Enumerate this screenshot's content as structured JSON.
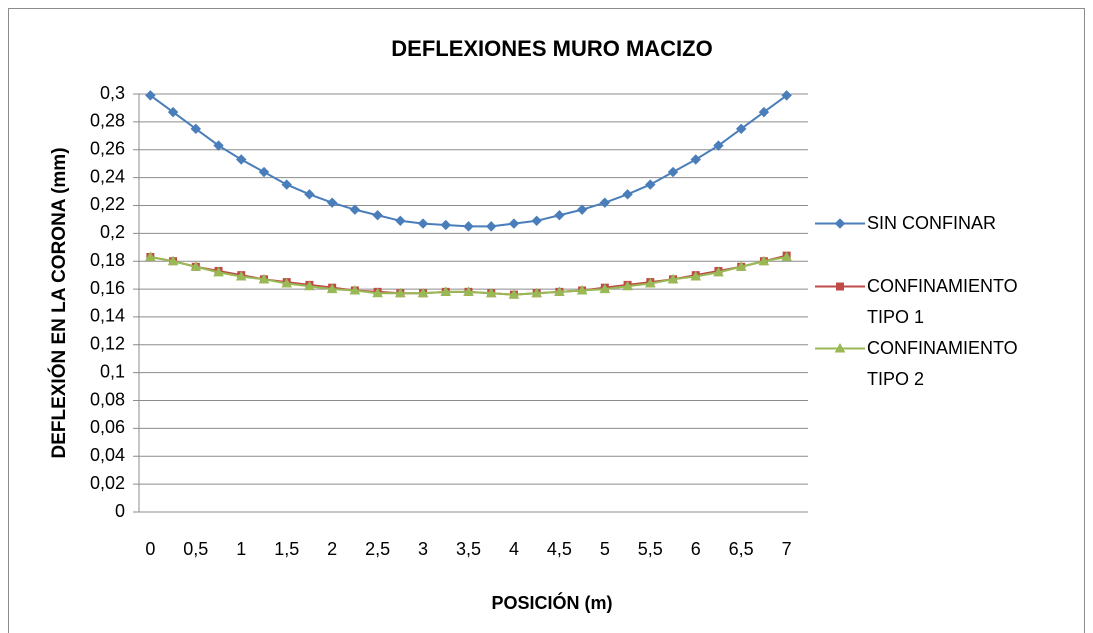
{
  "chart_data": {
    "type": "line",
    "title": "DEFLEXIONES MURO MACIZO",
    "x_label": "POSICIÓN (m)",
    "y_label": "DEFLEXIÓN EN LA CORONA (mm)",
    "categories": [
      "0",
      null,
      "0,5",
      null,
      "1",
      null,
      "1,5",
      null,
      "2",
      null,
      "2,5",
      null,
      "3",
      null,
      "3,5",
      null,
      "4",
      null,
      "4,5",
      null,
      "5",
      null,
      "5,5",
      null,
      "6",
      null,
      "6,5",
      null,
      "7"
    ],
    "series": [
      {
        "name": "SIN CONFINAR",
        "color": "#4a7ebb",
        "marker": "diamond",
        "values": [
          0.299,
          0.287,
          0.275,
          0.263,
          0.253,
          0.244,
          0.235,
          0.228,
          0.222,
          0.217,
          0.213,
          0.209,
          0.207,
          0.206,
          0.205,
          0.205,
          0.207,
          0.209,
          0.213,
          0.217,
          0.222,
          0.228,
          0.235,
          0.244,
          0.253,
          0.263,
          0.275,
          0.287,
          0.299
        ]
      },
      {
        "name": "CONFINAMIENTO TIPO 1",
        "color": "#be4b48",
        "marker": "square",
        "values": [
          0.183,
          0.18,
          0.176,
          0.173,
          0.17,
          0.167,
          0.165,
          0.163,
          0.161,
          0.159,
          0.158,
          0.157,
          0.157,
          0.158,
          0.158,
          0.157,
          0.156,
          0.157,
          0.158,
          0.159,
          0.161,
          0.163,
          0.165,
          0.167,
          0.17,
          0.173,
          0.176,
          0.18,
          0.184
        ]
      },
      {
        "name": "CONFINAMIENTO TIPO 2",
        "color": "#98b954",
        "marker": "triangle",
        "values": [
          0.183,
          0.18,
          0.176,
          0.172,
          0.169,
          0.167,
          0.164,
          0.162,
          0.16,
          0.159,
          0.157,
          0.157,
          0.157,
          0.158,
          0.158,
          0.157,
          0.156,
          0.157,
          0.158,
          0.159,
          0.16,
          0.162,
          0.164,
          0.167,
          0.169,
          0.172,
          0.176,
          0.18,
          0.183
        ]
      }
    ],
    "ylim": [
      0,
      0.3
    ],
    "yticks": [
      0,
      {
        "value": 0.02,
        "label": "0,02"
      },
      {
        "value": 0.04,
        "label": "0,04"
      },
      {
        "value": 0.06,
        "label": "0,06"
      },
      {
        "value": 0.08,
        "label": "0,08"
      },
      {
        "value": 0.1,
        "label": "0,1"
      },
      {
        "value": 0.12,
        "label": "0,12"
      },
      {
        "value": 0.14,
        "label": "0,14"
      },
      {
        "value": 0.16,
        "label": "0,16"
      },
      {
        "value": 0.18,
        "label": "0,18"
      },
      {
        "value": 0.2,
        "label": "0,2"
      },
      {
        "value": 0.22,
        "label": "0,22"
      },
      {
        "value": 0.24,
        "label": "0,24"
      },
      {
        "value": 0.26,
        "label": "0,26"
      },
      {
        "value": 0.28,
        "label": "0,28"
      },
      {
        "value": 0.3,
        "label": "0,3"
      }
    ],
    "grid": true,
    "legend": "right"
  }
}
